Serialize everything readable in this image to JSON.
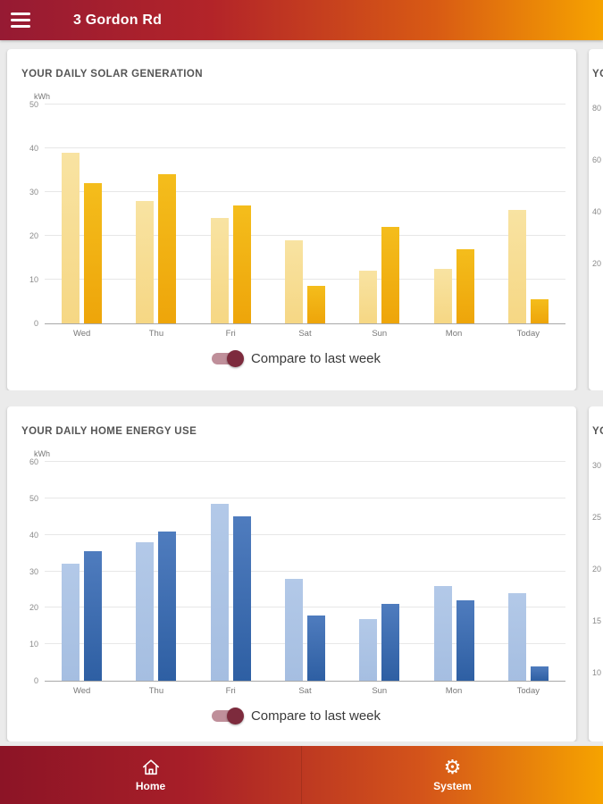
{
  "header": {
    "title": "3 Gordon Rd"
  },
  "toggle": {
    "label": "Compare to last week",
    "state": "on"
  },
  "icons": {
    "gear": "⚙"
  },
  "chart_data": [
    {
      "type": "bar",
      "title": "YOUR DAILY SOLAR GENERATION",
      "unit": "kWh",
      "categories": [
        "Wed",
        "Thu",
        "Fri",
        "Sat",
        "Sun",
        "Mon",
        "Today"
      ],
      "series": [
        {
          "name": "light",
          "color_top": "#f8e3a2",
          "color_bottom": "#f6d784",
          "values": [
            39,
            28,
            24,
            19,
            12,
            12.5,
            26
          ]
        },
        {
          "name": "dark",
          "color_top": "#f4bd1c",
          "color_bottom": "#eea50a",
          "values": [
            32,
            34,
            27,
            8.5,
            22,
            17,
            5.5
          ]
        }
      ],
      "ylim": [
        0,
        50
      ],
      "ystep": 10,
      "grid": true,
      "legend": "none"
    },
    {
      "type": "bar",
      "title": "YOUR DAILY HOME ENERGY USE",
      "unit": "kWh",
      "categories": [
        "Wed",
        "Thu",
        "Fri",
        "Sat",
        "Sun",
        "Mon",
        "Today"
      ],
      "series": [
        {
          "name": "light",
          "color_top": "#b3c9e8",
          "color_bottom": "#a5bee1",
          "values": [
            32,
            38,
            48.5,
            28,
            17,
            26,
            24
          ]
        },
        {
          "name": "dark",
          "color_top": "#4f7cbe",
          "color_bottom": "#2e5fa3",
          "values": [
            35.5,
            41,
            45,
            18,
            21,
            22,
            4
          ]
        }
      ],
      "ylim": [
        0,
        60
      ],
      "ystep": 10,
      "grid": true,
      "legend": "none"
    }
  ],
  "partial_cards": [
    {
      "title_fragment": "YO",
      "ticks": [
        80,
        60,
        40,
        20
      ]
    },
    {
      "title_fragment": "YO",
      "ticks": [
        30,
        25,
        20,
        15,
        10
      ]
    }
  ],
  "footer": {
    "tabs": [
      {
        "label": "Home",
        "icon": "home-icon"
      },
      {
        "label": "System",
        "icon": "gear-icon"
      }
    ]
  },
  "colors": {
    "gradient_start": "#961a33",
    "gradient_end": "#f6a300",
    "toggle_track": "#bf8f9a",
    "toggle_knob": "#7d2b3d",
    "card_bg": "#ffffff"
  }
}
